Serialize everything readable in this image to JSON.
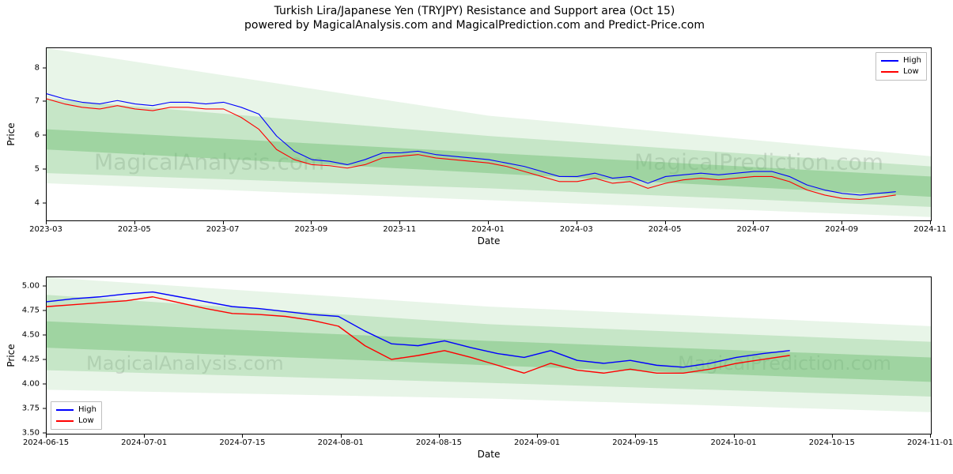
{
  "title": "Turkish Lira/Japanese Yen (TRYJPY) Resistance and Support area (Oct 15)",
  "subtitle": "powered by MagicalAnalysis.com and MagicalPrediction.com and Predict-Price.com",
  "watermark_top_left": "MagicalAnalysis.com",
  "watermark_top_right": "MagicalPrediction.com",
  "watermark_bot_left": "MagicalAnalysis.com",
  "watermark_bot_right": "MagicalPrediction.com",
  "colors": {
    "high": "#0000ff",
    "low": "#ff0000",
    "band1": "#6fbf73",
    "band2": "#6fbf73",
    "band3": "#6fbf73",
    "axis": "#000000",
    "bg": "#ffffff",
    "wm": "#dcdcdc"
  },
  "legend": {
    "high": "High",
    "low": "Low"
  },
  "axis": {
    "ylabel": "Price",
    "xlabel": "Date"
  },
  "chart1": {
    "type": "line",
    "ylim": [
      3.5,
      8.6
    ],
    "yticks": [
      4,
      5,
      6,
      7,
      8
    ],
    "xticks": [
      "2023-03",
      "2023-05",
      "2023-07",
      "2023-09",
      "2023-11",
      "2024-01",
      "2024-03",
      "2024-05",
      "2024-07",
      "2024-09",
      "2024-11"
    ],
    "x_left_label": "2023-03",
    "x_right_label": "2024-11",
    "line_width": 1.1,
    "band_opacity": [
      0.45,
      0.28,
      0.16
    ],
    "bands": {
      "x": [
        0.0,
        0.5,
        1.0
      ],
      "c1_top": [
        6.2,
        5.5,
        4.8
      ],
      "c1_bot": [
        5.6,
        4.9,
        4.2
      ],
      "c2_top": [
        7.1,
        6.0,
        5.1
      ],
      "c2_bot": [
        4.9,
        4.45,
        3.9
      ],
      "c3_top": [
        8.6,
        6.6,
        5.4
      ],
      "c3_bot": [
        4.6,
        4.1,
        3.6
      ]
    },
    "x": [
      0.0,
      0.02,
      0.04,
      0.06,
      0.08,
      0.1,
      0.12,
      0.14,
      0.16,
      0.18,
      0.2,
      0.22,
      0.24,
      0.26,
      0.28,
      0.3,
      0.32,
      0.34,
      0.36,
      0.38,
      0.4,
      0.42,
      0.44,
      0.46,
      0.48,
      0.5,
      0.52,
      0.54,
      0.56,
      0.58,
      0.6,
      0.62,
      0.64,
      0.66,
      0.68,
      0.7,
      0.72,
      0.74,
      0.76,
      0.78,
      0.8,
      0.82,
      0.84,
      0.86,
      0.88,
      0.9,
      0.92,
      0.94,
      0.96
    ],
    "high": [
      7.25,
      7.1,
      7.0,
      6.95,
      7.05,
      6.95,
      6.9,
      7.0,
      7.0,
      6.95,
      7.0,
      6.85,
      6.65,
      6.0,
      5.55,
      5.3,
      5.25,
      5.15,
      5.3,
      5.5,
      5.5,
      5.55,
      5.45,
      5.4,
      5.35,
      5.3,
      5.2,
      5.1,
      4.95,
      4.8,
      4.8,
      4.9,
      4.75,
      4.8,
      4.6,
      4.8,
      4.85,
      4.9,
      4.85,
      4.9,
      4.95,
      4.95,
      4.8,
      4.55,
      4.4,
      4.3,
      4.25,
      4.3,
      4.35
    ],
    "low": [
      7.1,
      6.95,
      6.85,
      6.8,
      6.9,
      6.8,
      6.75,
      6.85,
      6.85,
      6.8,
      6.8,
      6.55,
      6.2,
      5.6,
      5.3,
      5.15,
      5.12,
      5.05,
      5.15,
      5.35,
      5.4,
      5.45,
      5.35,
      5.3,
      5.25,
      5.2,
      5.1,
      4.95,
      4.8,
      4.65,
      4.65,
      4.75,
      4.6,
      4.65,
      4.45,
      4.6,
      4.7,
      4.75,
      4.7,
      4.75,
      4.8,
      4.8,
      4.65,
      4.4,
      4.25,
      4.15,
      4.12,
      4.18,
      4.25
    ]
  },
  "chart2": {
    "type": "line",
    "ylim": [
      3.5,
      5.1
    ],
    "yticks": [
      3.5,
      3.75,
      4.0,
      4.25,
      4.5,
      4.75,
      5.0
    ],
    "ytick_labels": [
      "3.50",
      "3.75",
      "4.00",
      "4.25",
      "4.50",
      "4.75",
      "5.00"
    ],
    "xticks": [
      "2024-06-15",
      "2024-07-01",
      "2024-07-15",
      "2024-08-01",
      "2024-08-15",
      "2024-09-01",
      "2024-09-15",
      "2024-10-01",
      "2024-10-15",
      "2024-11-01"
    ],
    "line_width": 1.4,
    "legend_pos": "bottom-left",
    "band_opacity": [
      0.45,
      0.28,
      0.16
    ],
    "bands": {
      "x": [
        0.0,
        0.5,
        1.0
      ],
      "c1_top": [
        4.65,
        4.45,
        4.28
      ],
      "c1_bot": [
        4.38,
        4.2,
        4.03
      ],
      "c2_top": [
        4.92,
        4.62,
        4.44
      ],
      "c2_bot": [
        4.15,
        4.02,
        3.88
      ],
      "c3_top": [
        5.1,
        4.8,
        4.6
      ],
      "c3_bot": [
        3.95,
        3.86,
        3.72
      ]
    },
    "x": [
      0.0,
      0.03,
      0.06,
      0.09,
      0.12,
      0.15,
      0.18,
      0.21,
      0.24,
      0.27,
      0.3,
      0.33,
      0.36,
      0.39,
      0.42,
      0.45,
      0.48,
      0.51,
      0.54,
      0.57,
      0.6,
      0.63,
      0.66,
      0.69,
      0.72,
      0.75,
      0.78,
      0.81,
      0.84
    ],
    "high": [
      4.85,
      4.88,
      4.9,
      4.93,
      4.95,
      4.9,
      4.85,
      4.8,
      4.78,
      4.75,
      4.72,
      4.7,
      4.55,
      4.42,
      4.4,
      4.45,
      4.38,
      4.32,
      4.28,
      4.35,
      4.25,
      4.22,
      4.25,
      4.2,
      4.18,
      4.22,
      4.28,
      4.32,
      4.35
    ],
    "low": [
      4.8,
      4.82,
      4.84,
      4.86,
      4.9,
      4.84,
      4.78,
      4.73,
      4.72,
      4.7,
      4.66,
      4.6,
      4.4,
      4.26,
      4.3,
      4.35,
      4.28,
      4.2,
      4.12,
      4.22,
      4.15,
      4.12,
      4.16,
      4.12,
      4.12,
      4.16,
      4.22,
      4.26,
      4.3
    ]
  }
}
